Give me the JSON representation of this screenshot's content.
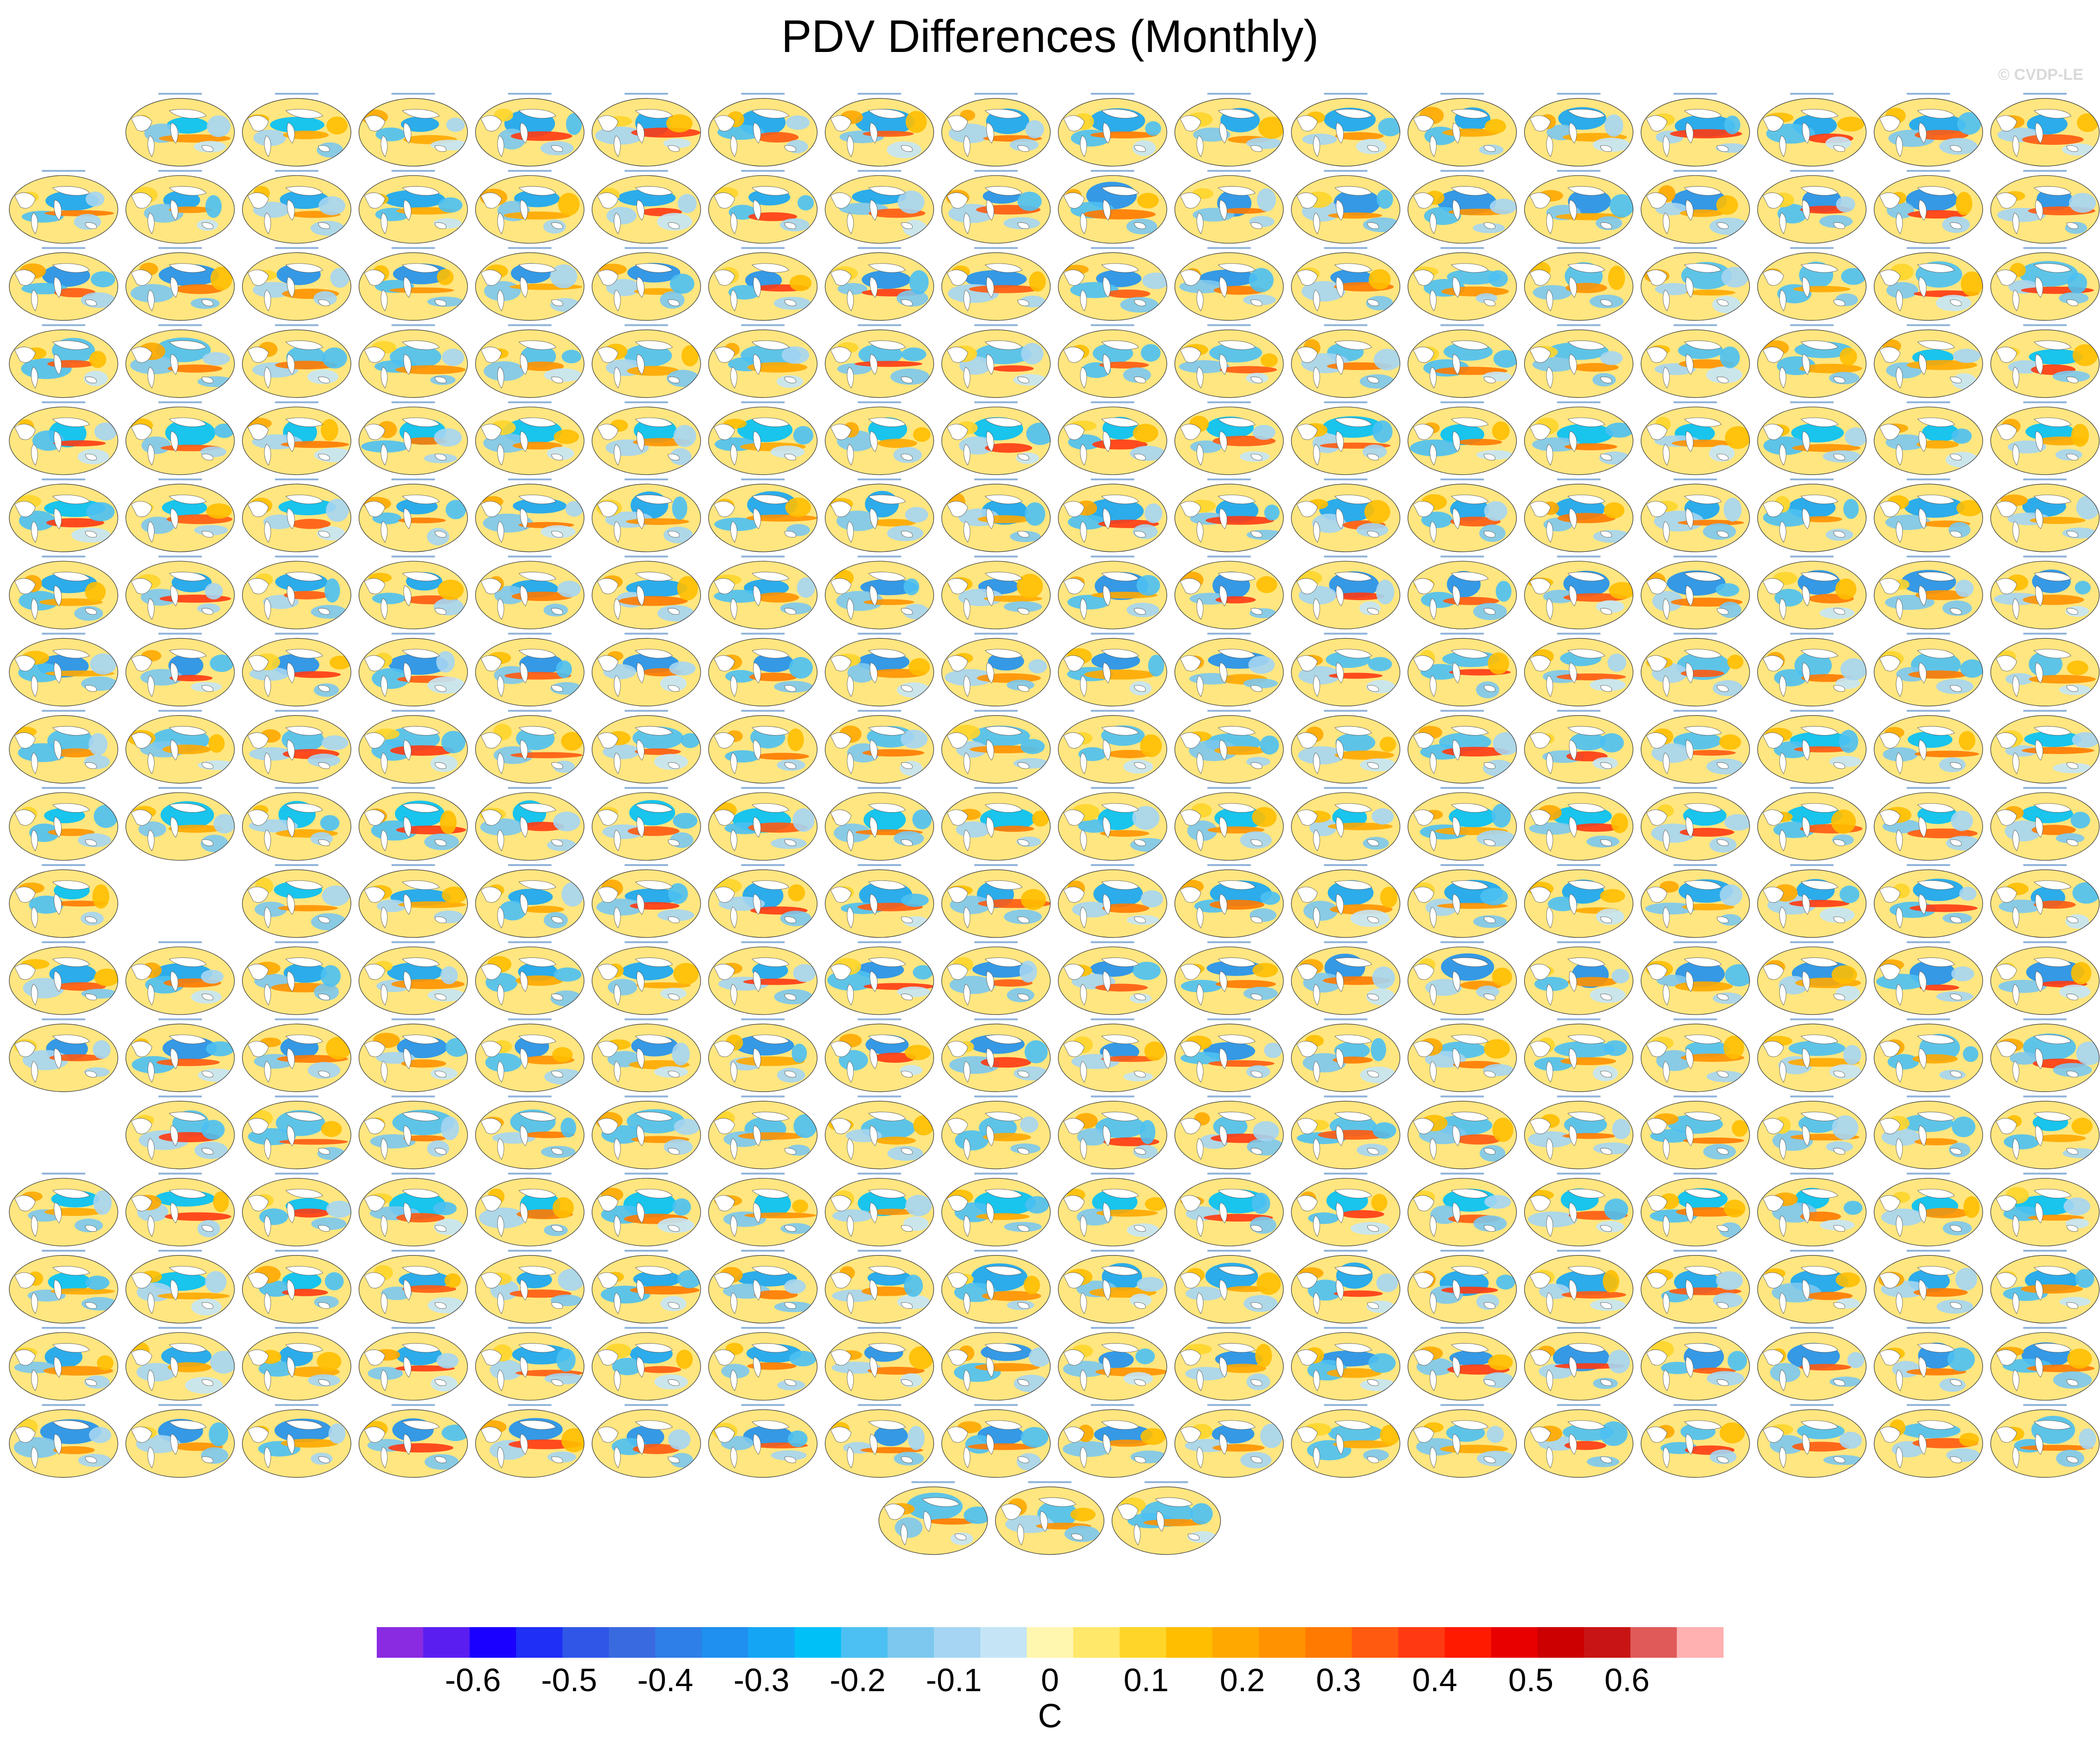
{
  "title": "PDV Differences (Monthly)",
  "watermark": "© CVDP-LE",
  "chart_data": {
    "type": "heatmap",
    "title": "PDV Differences (Monthly)",
    "panel_layout": {
      "columns": 18,
      "rows": [
        {
          "panels": 17,
          "skip_first": 1
        },
        {
          "panels": 18
        },
        {
          "panels": 18
        },
        {
          "panels": 18
        },
        {
          "panels": 18
        },
        {
          "panels": 18
        },
        {
          "panels": 18
        },
        {
          "panels": 18
        },
        {
          "panels": 18
        },
        {
          "panels": 18
        },
        {
          "panels": 17,
          "skip_second": 1
        },
        {
          "panels": 18
        },
        {
          "panels": 18
        },
        {
          "panels": 17,
          "skip_first": 1
        },
        {
          "panels": 18
        },
        {
          "panels": 18
        },
        {
          "panels": 18
        },
        {
          "panels": 18
        },
        {
          "panels": 3,
          "centered": true
        }
      ]
    },
    "colorbar": {
      "unit": "C",
      "tick_labels": [
        "-0.6",
        "-0.5",
        "-0.4",
        "-0.3",
        "-0.2",
        "-0.1",
        "0",
        "0.1",
        "0.2",
        "0.3",
        "0.4",
        "0.5",
        "0.6"
      ],
      "tick_values": [
        -0.6,
        -0.5,
        -0.4,
        -0.3,
        -0.2,
        -0.1,
        0,
        0.1,
        0.2,
        0.3,
        0.4,
        0.5,
        0.6
      ],
      "level_step": 0.05,
      "range": [
        -0.7,
        0.7
      ],
      "colors": [
        "#8a2be2",
        "#5a1ff0",
        "#1a00ff",
        "#1f2ff5",
        "#2f56e6",
        "#3a6ae0",
        "#2e7fe8",
        "#1f90f0",
        "#15a5f5",
        "#00c0f8",
        "#4cc0f2",
        "#7cc8ee",
        "#a5d5f2",
        "#c5e5f6",
        "#fff6b0",
        "#ffe86a",
        "#ffd52a",
        "#ffbe00",
        "#ffa800",
        "#ff9200",
        "#ff7a00",
        "#ff5a10",
        "#ff3a12",
        "#ff1a00",
        "#e80000",
        "#cc0000",
        "#c81414",
        "#e05a5a",
        "#ffb0b0"
      ]
    }
  }
}
